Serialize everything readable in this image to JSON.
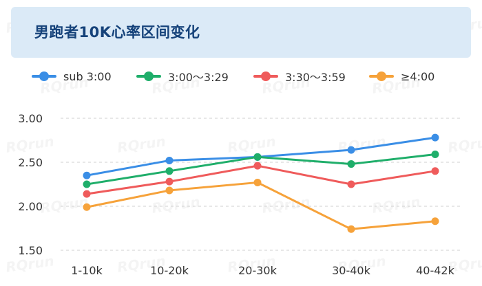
{
  "chart_data": {
    "type": "line",
    "title": "男跑者10K心率区间变化",
    "categories": [
      "1-10k",
      "10-20k",
      "20-30k",
      "30-40k",
      "40-42k"
    ],
    "yticks": [
      "3.00",
      "2.50",
      "2.00",
      "1.50"
    ],
    "ylim": [
      1.5,
      3.0
    ],
    "grid": true,
    "legend_position": "top-left",
    "series": [
      {
        "name": "sub 3:00",
        "color": "#3a8ee6",
        "values": [
          2.35,
          2.52,
          2.56,
          2.64,
          2.78
        ]
      },
      {
        "name": "3:00～3:29",
        "color": "#1fae6a",
        "values": [
          2.25,
          2.4,
          2.56,
          2.48,
          2.59
        ]
      },
      {
        "name": "3:30～3:59",
        "color": "#ef5b5b",
        "values": [
          2.14,
          2.28,
          2.46,
          2.25,
          2.4
        ]
      },
      {
        "name": "≥4:00",
        "color": "#f6a23a",
        "values": [
          1.99,
          2.18,
          2.27,
          1.74,
          1.83
        ]
      }
    ]
  },
  "watermark": "RQrun"
}
